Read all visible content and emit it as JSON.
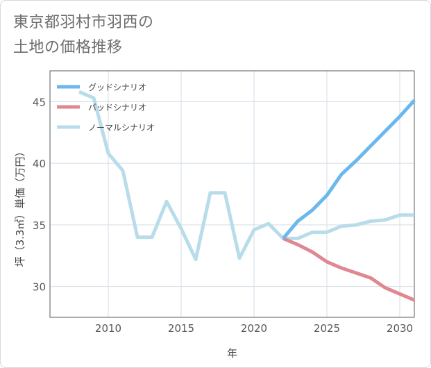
{
  "title_line1": "東京都羽村市羽西の",
  "title_line2": "土地の価格推移",
  "chart_data": {
    "type": "line",
    "title": "東京都羽村市羽西の土地の価格推移",
    "xlabel": "年",
    "ylabel": "坪（3.3㎡）単価（万円）",
    "xlim": [
      2006,
      2031
    ],
    "ylim": [
      27.5,
      47.5
    ],
    "xticks": [
      2010,
      2015,
      2020,
      2025,
      2030
    ],
    "yticks": [
      30,
      35,
      40,
      45
    ],
    "legend_position": "top-left",
    "series": [
      {
        "name": "グッドシナリオ",
        "color": "#6ab8ec",
        "x": [
          2022,
          2023,
          2024,
          2025,
          2026,
          2027,
          2028,
          2029,
          2030,
          2031
        ],
        "y": [
          33.9,
          35.3,
          36.2,
          37.4,
          39.1,
          40.2,
          41.4,
          42.6,
          43.8,
          45.1
        ]
      },
      {
        "name": "バッドシナリオ",
        "color": "#e08890",
        "x": [
          2022,
          2023,
          2024,
          2025,
          2026,
          2027,
          2028,
          2029,
          2030,
          2031
        ],
        "y": [
          33.9,
          33.4,
          32.8,
          32.0,
          31.5,
          31.1,
          30.7,
          29.9,
          29.4,
          28.9
        ]
      },
      {
        "name": "ノーマルシナリオ",
        "color": "#b8dcea",
        "x": [
          2008,
          2009,
          2010,
          2011,
          2012,
          2013,
          2014,
          2015,
          2016,
          2017,
          2018,
          2019,
          2020,
          2021,
          2022,
          2023,
          2024,
          2025,
          2026,
          2027,
          2028,
          2029,
          2030,
          2031
        ],
        "y": [
          45.8,
          45.3,
          40.8,
          39.4,
          34.0,
          34.0,
          36.9,
          34.7,
          32.2,
          37.6,
          37.6,
          32.3,
          34.6,
          35.1,
          33.9,
          33.9,
          34.4,
          34.4,
          34.9,
          35.0,
          35.3,
          35.4,
          35.8,
          35.8
        ]
      }
    ]
  }
}
